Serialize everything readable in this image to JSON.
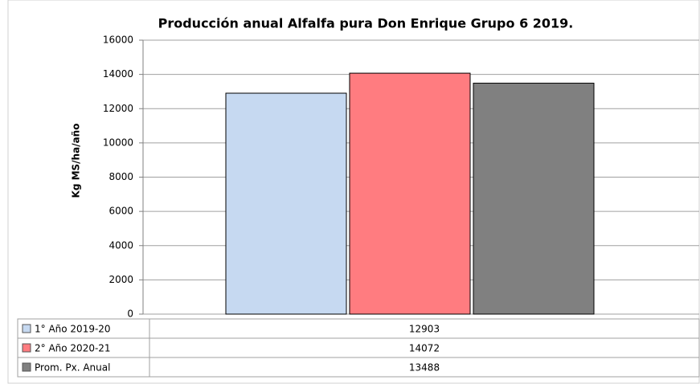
{
  "chart_data": {
    "type": "bar",
    "title": "Producción anual Alfalfa pura Don Enrique Grupo 6 2019.",
    "y_label": "Kg MS/ha/año",
    "categories": [
      null
    ],
    "series": [
      {
        "name": "1° Año 2019-20",
        "color": "#c6d9f1",
        "values": [
          12903
        ]
      },
      {
        "name": "2° Año 2020-21",
        "color": "#ff7c80",
        "values": [
          14072
        ]
      },
      {
        "name": "Prom. Px. Anual",
        "color": "#808080",
        "values": [
          13488
        ]
      }
    ],
    "ylim": [
      0,
      16000
    ],
    "yticks": [
      0,
      2000,
      4000,
      6000,
      8000,
      10000,
      12000,
      14000,
      16000
    ],
    "grid": true,
    "data_table": true
  }
}
